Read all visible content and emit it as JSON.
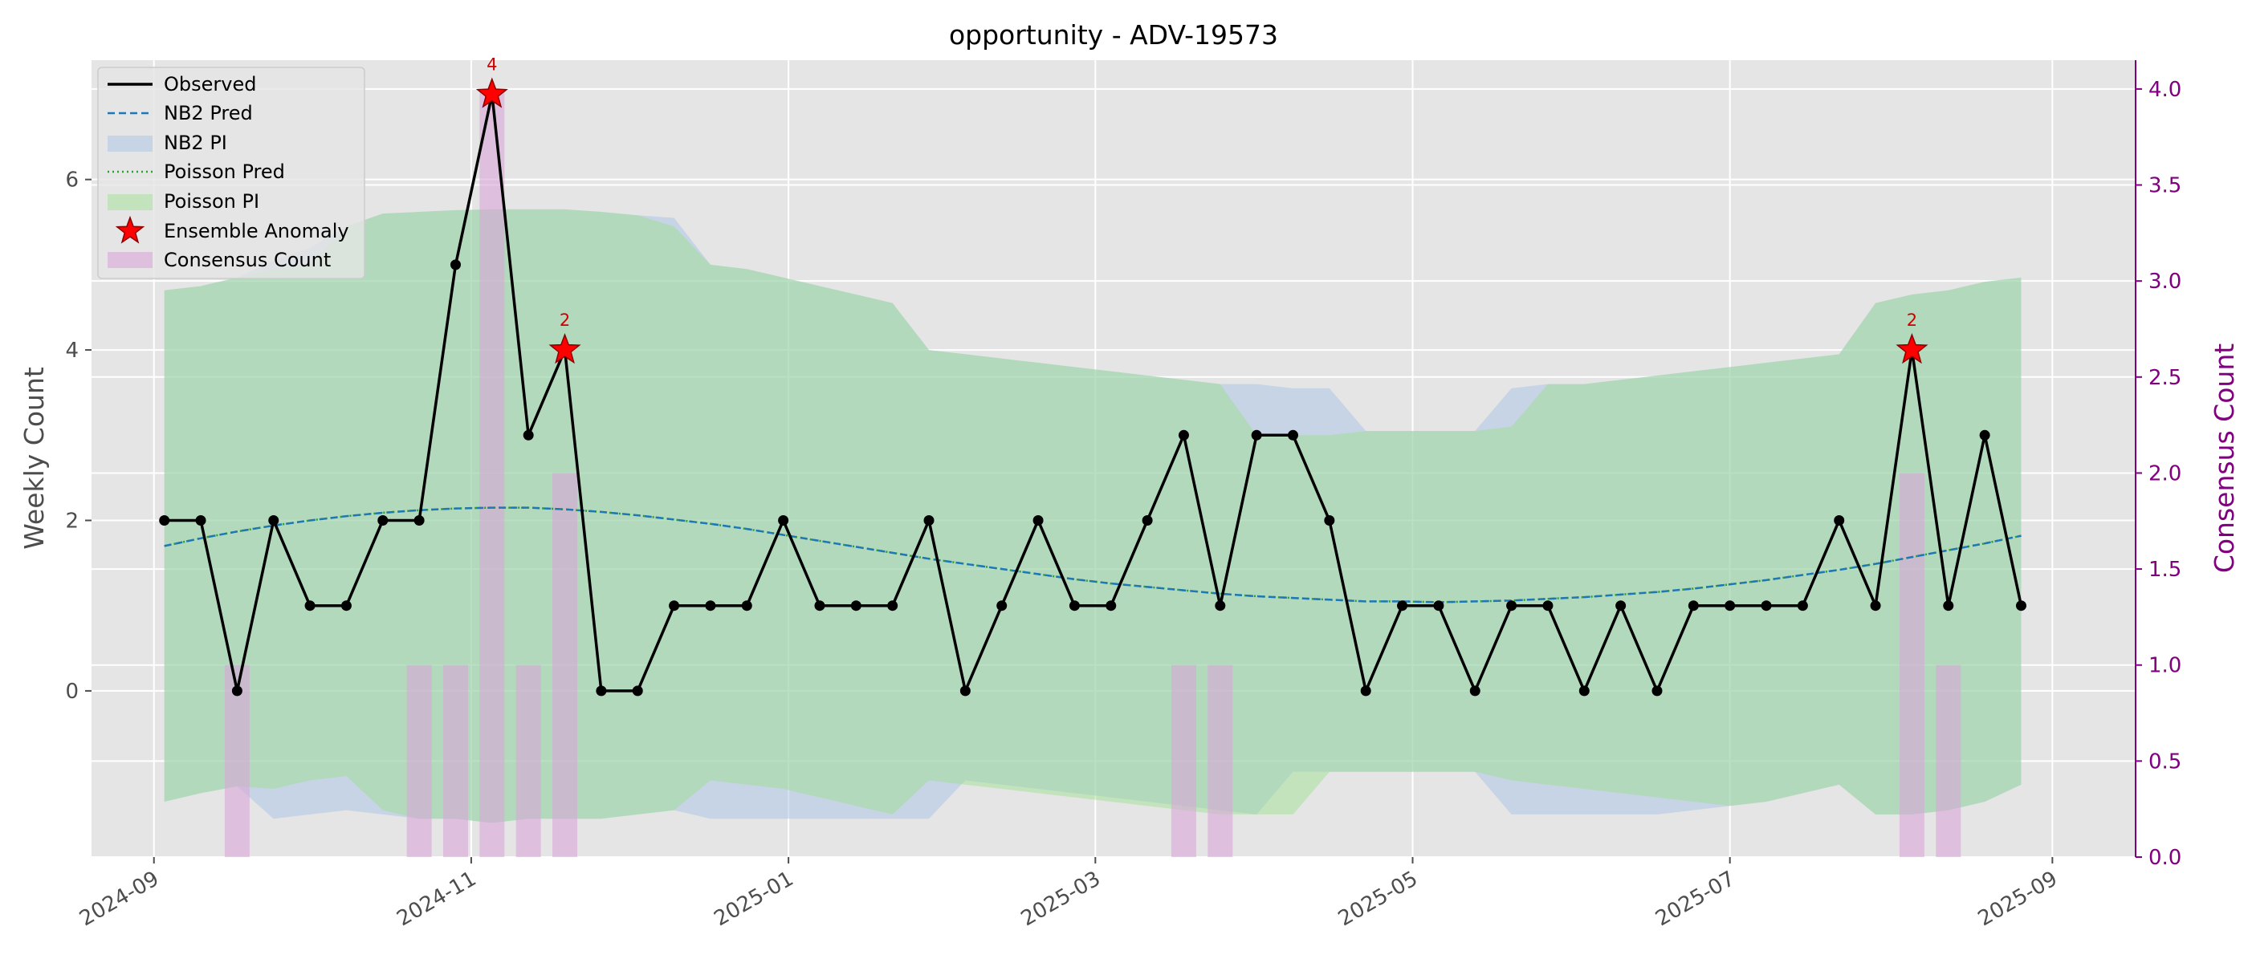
{
  "chart_data": {
    "type": "line",
    "title": "opportunity - ADV-19573",
    "xlabel": "",
    "ylabel": "Weekly Count",
    "y2label": "Consensus Count",
    "xlim": [
      "2024-08-20",
      "2025-09-17"
    ],
    "ylim": [
      -1.95,
      7.4
    ],
    "y2lim": [
      0,
      4.15
    ],
    "x_ticks": [
      "2024-09",
      "2024-11",
      "2025-01",
      "2025-03",
      "2025-05",
      "2025-07",
      "2025-09"
    ],
    "x_tick_dates": [
      "2024-09-01",
      "2024-11-01",
      "2025-01-01",
      "2025-03-01",
      "2025-05-01",
      "2025-07-01",
      "2025-09-01"
    ],
    "y_ticks": [
      0,
      2,
      4,
      6
    ],
    "y2_ticks": [
      "0.0",
      "0.5",
      "1.0",
      "1.5",
      "2.0",
      "2.5",
      "3.0",
      "3.5",
      "4.0"
    ],
    "grid": true,
    "legend_position": "top-left",
    "legend": [
      "Observed",
      "NB2 Pred",
      "NB2 PI",
      "Poisson Pred",
      "Poisson PI",
      "Ensemble Anomaly",
      "Consensus Count"
    ],
    "colors": {
      "observed": "#000000",
      "nb2_pred": "#1f77b4",
      "nb2_pi": "#aec7e8",
      "poisson_pred": "#2ca02c",
      "poisson_pi": "#98df8a",
      "anomaly": "#ff0000",
      "consensus": "#d8a7d8",
      "right_axis": "#800080",
      "background": "#e5e5e5"
    },
    "dates": [
      "2024-09-03",
      "2024-09-10",
      "2024-09-17",
      "2024-09-24",
      "2024-10-01",
      "2024-10-08",
      "2024-10-15",
      "2024-10-22",
      "2024-10-29",
      "2024-11-05",
      "2024-11-12",
      "2024-11-19",
      "2024-11-26",
      "2024-12-03",
      "2024-12-10",
      "2024-12-17",
      "2024-12-24",
      "2024-12-31",
      "2025-01-07",
      "2025-01-14",
      "2025-01-21",
      "2025-01-28",
      "2025-02-04",
      "2025-02-11",
      "2025-02-18",
      "2025-02-25",
      "2025-03-04",
      "2025-03-11",
      "2025-03-18",
      "2025-03-25",
      "2025-04-01",
      "2025-04-08",
      "2025-04-15",
      "2025-04-22",
      "2025-04-29",
      "2025-05-06",
      "2025-05-13",
      "2025-05-20",
      "2025-05-27",
      "2025-06-03",
      "2025-06-10",
      "2025-06-17",
      "2025-06-24",
      "2025-07-01",
      "2025-07-08",
      "2025-07-15",
      "2025-07-22",
      "2025-07-29",
      "2025-08-05",
      "2025-08-12",
      "2025-08-19",
      "2025-08-26"
    ],
    "series": [
      {
        "name": "Observed",
        "values": [
          2,
          2,
          0,
          2,
          1,
          1,
          2,
          2,
          5,
          7,
          3,
          4,
          0,
          0,
          1,
          1,
          1,
          2,
          1,
          1,
          1,
          2,
          0,
          1,
          2,
          1,
          1,
          2,
          3,
          1,
          3,
          3,
          2,
          0,
          1,
          1,
          0,
          1,
          1,
          0,
          1,
          0,
          1,
          1,
          1,
          1,
          2,
          1,
          4,
          1,
          3,
          1
        ]
      },
      {
        "name": "NB2 Pred",
        "values": [
          1.7,
          1.79,
          1.87,
          1.94,
          2.0,
          2.05,
          2.09,
          2.12,
          2.14,
          2.15,
          2.15,
          2.13,
          2.1,
          2.06,
          2.01,
          1.96,
          1.9,
          1.83,
          1.76,
          1.69,
          1.62,
          1.55,
          1.49,
          1.43,
          1.37,
          1.31,
          1.26,
          1.22,
          1.18,
          1.14,
          1.11,
          1.09,
          1.07,
          1.05,
          1.05,
          1.04,
          1.05,
          1.06,
          1.08,
          1.1,
          1.13,
          1.16,
          1.2,
          1.25,
          1.3,
          1.36,
          1.42,
          1.49,
          1.57,
          1.65,
          1.73,
          1.82
        ]
      },
      {
        "name": "Poisson Pred",
        "values": [
          1.7,
          1.79,
          1.87,
          1.94,
          2.0,
          2.05,
          2.09,
          2.12,
          2.14,
          2.15,
          2.15,
          2.13,
          2.1,
          2.06,
          2.01,
          1.96,
          1.9,
          1.83,
          1.76,
          1.69,
          1.62,
          1.55,
          1.49,
          1.43,
          1.37,
          1.31,
          1.26,
          1.22,
          1.18,
          1.14,
          1.11,
          1.09,
          1.07,
          1.05,
          1.05,
          1.04,
          1.05,
          1.06,
          1.08,
          1.1,
          1.13,
          1.16,
          1.2,
          1.25,
          1.3,
          1.36,
          1.42,
          1.49,
          1.57,
          1.65,
          1.73,
          1.82
        ]
      },
      {
        "name": "NB2 PI",
        "lower": [
          -1.3,
          -1.2,
          -1.12,
          -1.5,
          -1.45,
          -1.4,
          -1.45,
          -1.5,
          -1.5,
          -1.55,
          -1.5,
          -1.5,
          -1.5,
          -1.45,
          -1.4,
          -1.5,
          -1.5,
          -1.5,
          -1.5,
          -1.5,
          -1.5,
          -1.5,
          -1.05,
          -1.1,
          -1.15,
          -1.2,
          -1.25,
          -1.3,
          -1.35,
          -1.4,
          -1.45,
          -0.95,
          -0.95,
          -0.95,
          -0.95,
          -0.95,
          -0.95,
          -1.45,
          -1.45,
          -1.45,
          -1.45,
          -1.45,
          -1.4,
          -1.35,
          -1.3,
          -1.2,
          -1.1,
          -1.45,
          -1.45,
          -1.4,
          -1.3,
          -1.1
        ],
        "upper": [
          4.7,
          4.75,
          4.85,
          5.05,
          5.2,
          5.45,
          5.6,
          5.62,
          5.64,
          5.65,
          5.65,
          5.65,
          5.62,
          5.58,
          5.55,
          5.0,
          4.95,
          4.85,
          4.75,
          4.65,
          4.55,
          4.0,
          3.95,
          3.9,
          3.85,
          3.8,
          3.75,
          3.7,
          3.65,
          3.6,
          3.6,
          3.55,
          3.55,
          3.05,
          3.05,
          3.05,
          3.05,
          3.55,
          3.6,
          3.6,
          3.65,
          3.7,
          3.75,
          3.8,
          3.85,
          3.9,
          3.95,
          4.55,
          4.65,
          4.7,
          4.8,
          4.85
        ]
      },
      {
        "name": "Poisson PI",
        "lower": [
          -1.3,
          -1.2,
          -1.12,
          -1.15,
          -1.05,
          -1.0,
          -1.4,
          -1.5,
          -1.5,
          -1.55,
          -1.5,
          -1.5,
          -1.5,
          -1.45,
          -1.4,
          -1.05,
          -1.1,
          -1.15,
          -1.25,
          -1.35,
          -1.45,
          -1.05,
          -1.1,
          -1.15,
          -1.2,
          -1.25,
          -1.3,
          -1.35,
          -1.4,
          -1.45,
          -1.45,
          -1.45,
          -0.95,
          -0.95,
          -0.95,
          -0.95,
          -0.95,
          -1.05,
          -1.1,
          -1.15,
          -1.2,
          -1.25,
          -1.3,
          -1.35,
          -1.3,
          -1.2,
          -1.1,
          -1.45,
          -1.45,
          -1.4,
          -1.3,
          -1.1
        ],
        "upper": [
          4.7,
          4.75,
          4.85,
          4.95,
          5.0,
          5.45,
          5.6,
          5.62,
          5.64,
          5.65,
          5.65,
          5.65,
          5.62,
          5.58,
          5.45,
          5.0,
          4.95,
          4.85,
          4.75,
          4.65,
          4.55,
          4.0,
          3.95,
          3.9,
          3.85,
          3.8,
          3.75,
          3.7,
          3.65,
          3.6,
          3.0,
          3.0,
          3.0,
          3.05,
          3.05,
          3.05,
          3.05,
          3.1,
          3.6,
          3.6,
          3.65,
          3.7,
          3.75,
          3.8,
          3.85,
          3.9,
          3.95,
          4.55,
          4.65,
          4.7,
          4.8,
          4.85
        ]
      }
    ],
    "anomalies": [
      {
        "date": "2024-11-05",
        "value": 7,
        "label": "4"
      },
      {
        "date": "2024-11-19",
        "value": 4,
        "label": "2"
      },
      {
        "date": "2025-08-05",
        "value": 4,
        "label": "2"
      }
    ],
    "consensus": [
      {
        "date": "2024-09-17",
        "value": 1
      },
      {
        "date": "2024-10-22",
        "value": 1
      },
      {
        "date": "2024-10-29",
        "value": 1
      },
      {
        "date": "2024-11-05",
        "value": 4
      },
      {
        "date": "2024-11-12",
        "value": 1
      },
      {
        "date": "2024-11-19",
        "value": 2
      },
      {
        "date": "2025-03-18",
        "value": 1
      },
      {
        "date": "2025-03-25",
        "value": 1
      },
      {
        "date": "2025-08-05",
        "value": 2
      },
      {
        "date": "2025-08-12",
        "value": 1
      }
    ]
  }
}
